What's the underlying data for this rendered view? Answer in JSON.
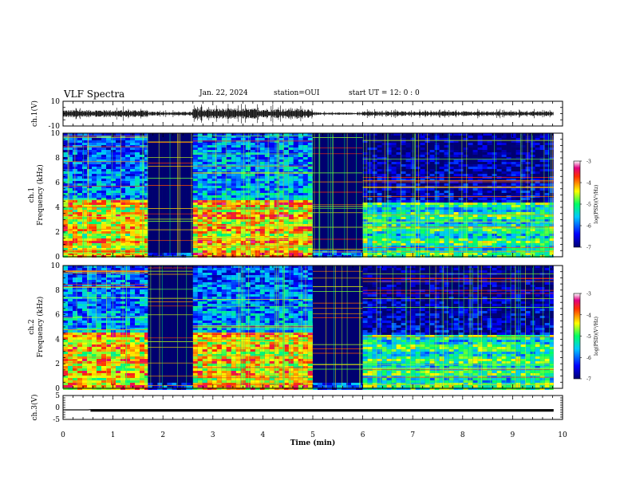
{
  "header": {
    "title": "VLF Spectra",
    "date": "Jan. 22, 2024",
    "station": "station=OUI",
    "start_time": "start  UT =   12: 0  : 0"
  },
  "chart_data": [
    {
      "type": "line",
      "panel": "ch1-waveform",
      "ylabel": "ch.1(V)",
      "ylim": [
        -10,
        10
      ],
      "yticks": [
        "10",
        "-10"
      ],
      "xlim": [
        0,
        10
      ],
      "segments": [
        {
          "x": [
            0.0,
            1.7
          ],
          "amplitude_v": 2.5
        },
        {
          "x": [
            1.7,
            2.6
          ],
          "amplitude_v": 1.3
        },
        {
          "x": [
            2.6,
            5.0
          ],
          "amplitude_v": 3.5
        },
        {
          "x": [
            5.0,
            6.0
          ],
          "amplitude_v": 0.8
        },
        {
          "x": [
            6.0,
            9.82
          ],
          "amplitude_v": 1.6
        }
      ]
    },
    {
      "type": "heatmap",
      "panel": "ch1-spectrogram",
      "ylabel": "ch.1\nFrequency (kHz)",
      "ylim": [
        0,
        10
      ],
      "yticks": [
        "0",
        "2",
        "4",
        "6",
        "8",
        "10"
      ],
      "xlim": [
        0,
        10
      ],
      "data_end_min": 9.82,
      "colorbar": {
        "label": "log(PSD)(V²/Hz)",
        "range": [
          -7,
          -3
        ],
        "ticks": [
          "-3",
          "-4",
          "-5",
          "-6",
          "-7"
        ]
      },
      "segments": [
        {
          "x": [
            0.0,
            1.7
          ],
          "low_band_top_khz": 4.7,
          "level": -4.4
        },
        {
          "x": [
            1.7,
            2.6
          ],
          "low_band_top_khz": 0.5,
          "level": -6.5
        },
        {
          "x": [
            2.6,
            5.0
          ],
          "low_band_top_khz": 4.7,
          "level": -4.2
        },
        {
          "x": [
            5.0,
            6.0
          ],
          "low_band_top_khz": 0.6,
          "level": -6.3
        },
        {
          "x": [
            6.0,
            9.82
          ],
          "low_band_top_khz": 4.4,
          "level": -5.2
        }
      ]
    },
    {
      "type": "heatmap",
      "panel": "ch2-spectrogram",
      "ylabel": "ch.2\nFrequency (kHz)",
      "ylim": [
        0,
        10
      ],
      "yticks": [
        "0",
        "2",
        "4",
        "6",
        "8",
        "10"
      ],
      "xlim": [
        0,
        10
      ],
      "data_end_min": 9.82,
      "colorbar": {
        "label": "log(PSD)(V²/Hz)",
        "range": [
          -7,
          -3
        ],
        "ticks": [
          "-3",
          "-4",
          "-5",
          "-6",
          "-7"
        ]
      },
      "segments": [
        {
          "x": [
            0.0,
            1.7
          ],
          "low_band_top_khz": 4.6,
          "level": -4.3
        },
        {
          "x": [
            1.7,
            2.6
          ],
          "low_band_top_khz": 0.5,
          "level": -6.5
        },
        {
          "x": [
            2.6,
            5.0
          ],
          "low_band_top_khz": 4.6,
          "level": -4.3
        },
        {
          "x": [
            5.0,
            6.0
          ],
          "low_band_top_khz": 0.6,
          "level": -6.3
        },
        {
          "x": [
            6.0,
            9.82
          ],
          "low_band_top_khz": 4.4,
          "level": -5.2
        }
      ]
    },
    {
      "type": "line",
      "panel": "ch3-waveform",
      "ylabel": "ch.3(V)",
      "ylim": [
        -5,
        5
      ],
      "yticks": [
        "5",
        "0",
        "-5"
      ],
      "xlim": [
        0,
        10
      ],
      "x": [
        0.0,
        0.5,
        0.55,
        9.82
      ],
      "y": [
        -1.0,
        -1.0,
        -0.9,
        -0.9
      ],
      "xlabel": "Time (min)",
      "xticks": [
        "0",
        "1",
        "2",
        "3",
        "4",
        "5",
        "6",
        "7",
        "8",
        "9",
        "10"
      ]
    }
  ]
}
